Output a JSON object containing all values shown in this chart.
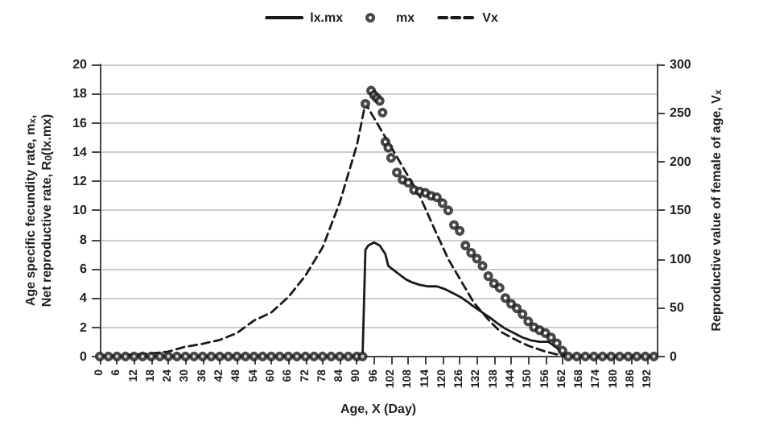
{
  "chart_data": {
    "type": "line",
    "xlabel": "Age, X (Day)",
    "ylabel": "Age specific fecundity rate, m$_{x}$,\nNet reproductive rate, R$_{0}$(lx.mx)",
    "y2label": "Reproductive value of female of age, V$_{x}$",
    "xlim": [
      0,
      195
    ],
    "xticks": [
      0,
      6,
      12,
      18,
      24,
      30,
      36,
      42,
      48,
      54,
      60,
      66,
      72,
      78,
      84,
      90,
      96,
      102,
      108,
      114,
      120,
      126,
      132,
      138,
      144,
      150,
      156,
      162,
      168,
      174,
      180,
      186,
      192
    ],
    "ylim": [
      0,
      20
    ],
    "yticks": [
      0,
      2,
      4,
      6,
      8,
      10,
      12,
      14,
      16,
      18,
      20
    ],
    "y2lim": [
      0,
      300
    ],
    "y2ticks": [
      0,
      50,
      100,
      150,
      200,
      250,
      300
    ],
    "grid": "y",
    "legend": "top",
    "series": [
      {
        "name": "lx.mx",
        "color": "#1a1a1a",
        "line_style": "solid",
        "x": [
          0,
          92,
          93,
          94,
          96,
          98,
          100,
          101,
          103,
          105,
          107,
          109,
          112,
          115,
          118,
          121,
          123,
          126,
          129,
          131,
          134,
          137,
          139,
          142,
          145,
          148,
          151,
          154,
          157,
          160,
          162,
          163,
          165,
          195
        ],
        "values": [
          0,
          0,
          7.3,
          7.6,
          7.8,
          7.6,
          7.0,
          6.2,
          5.9,
          5.6,
          5.3,
          5.1,
          4.9,
          4.8,
          4.8,
          4.6,
          4.4,
          4.1,
          3.7,
          3.4,
          3.0,
          2.6,
          2.3,
          1.9,
          1.6,
          1.3,
          1.1,
          1.0,
          1.0,
          0.6,
          0.2,
          0.1,
          0,
          0
        ]
      },
      {
        "name": "mx",
        "type": "scatter",
        "marker": "circle",
        "color": "#1a1a1a",
        "x": [
          0,
          3,
          6,
          9,
          12,
          15,
          18,
          21,
          24,
          27,
          30,
          33,
          36,
          39,
          42,
          45,
          48,
          51,
          54,
          57,
          60,
          63,
          66,
          69,
          72,
          75,
          78,
          81,
          84,
          87,
          90,
          92,
          93,
          95,
          96,
          97,
          98,
          99,
          100,
          101,
          102,
          104,
          106,
          108,
          110,
          112,
          114,
          116,
          118,
          120,
          122,
          124,
          126,
          128,
          130,
          132,
          134,
          136,
          138,
          140,
          142,
          144,
          146,
          148,
          150,
          152,
          154,
          156,
          158,
          160,
          162,
          164,
          167,
          170,
          173,
          176,
          179,
          182,
          185,
          188,
          191,
          194
        ],
        "values": [
          0,
          0,
          0,
          0,
          0,
          0,
          0,
          0,
          0,
          0,
          0,
          0,
          0,
          0,
          0,
          0,
          0,
          0,
          0,
          0,
          0,
          0,
          0,
          0,
          0,
          0,
          0,
          0,
          0,
          0,
          0,
          0,
          17.3,
          18.2,
          17.9,
          17.7,
          17.5,
          16.7,
          14.7,
          14.3,
          13.6,
          12.6,
          12.1,
          11.9,
          11.4,
          11.3,
          11.2,
          11.0,
          10.9,
          10.5,
          10.0,
          9.0,
          8.6,
          7.6,
          7.1,
          6.7,
          6.2,
          5.5,
          5.0,
          4.7,
          4.0,
          3.6,
          3.3,
          2.9,
          2.4,
          2.0,
          1.8,
          1.6,
          1.3,
          0.9,
          0.4,
          0,
          0,
          0,
          0,
          0,
          0,
          0,
          0,
          0,
          0,
          0
        ]
      },
      {
        "name": "Vx",
        "axis": "y2",
        "line_style": "dashed",
        "color": "#1a1a1a",
        "x": [
          0,
          6,
          12,
          18,
          24,
          30,
          36,
          42,
          48,
          54,
          60,
          66,
          72,
          78,
          84,
          90,
          93,
          100,
          106,
          112,
          117,
          122,
          127,
          131,
          136,
          140,
          145,
          150,
          156,
          163,
          195
        ],
        "values": [
          0,
          0,
          2,
          3,
          5,
          10,
          13,
          17,
          24,
          37,
          45,
          61,
          83,
          112,
          158,
          217,
          260,
          225,
          195,
          165,
          132,
          100,
          75,
          55,
          38,
          26,
          18,
          11,
          5,
          0,
          0
        ]
      }
    ]
  }
}
